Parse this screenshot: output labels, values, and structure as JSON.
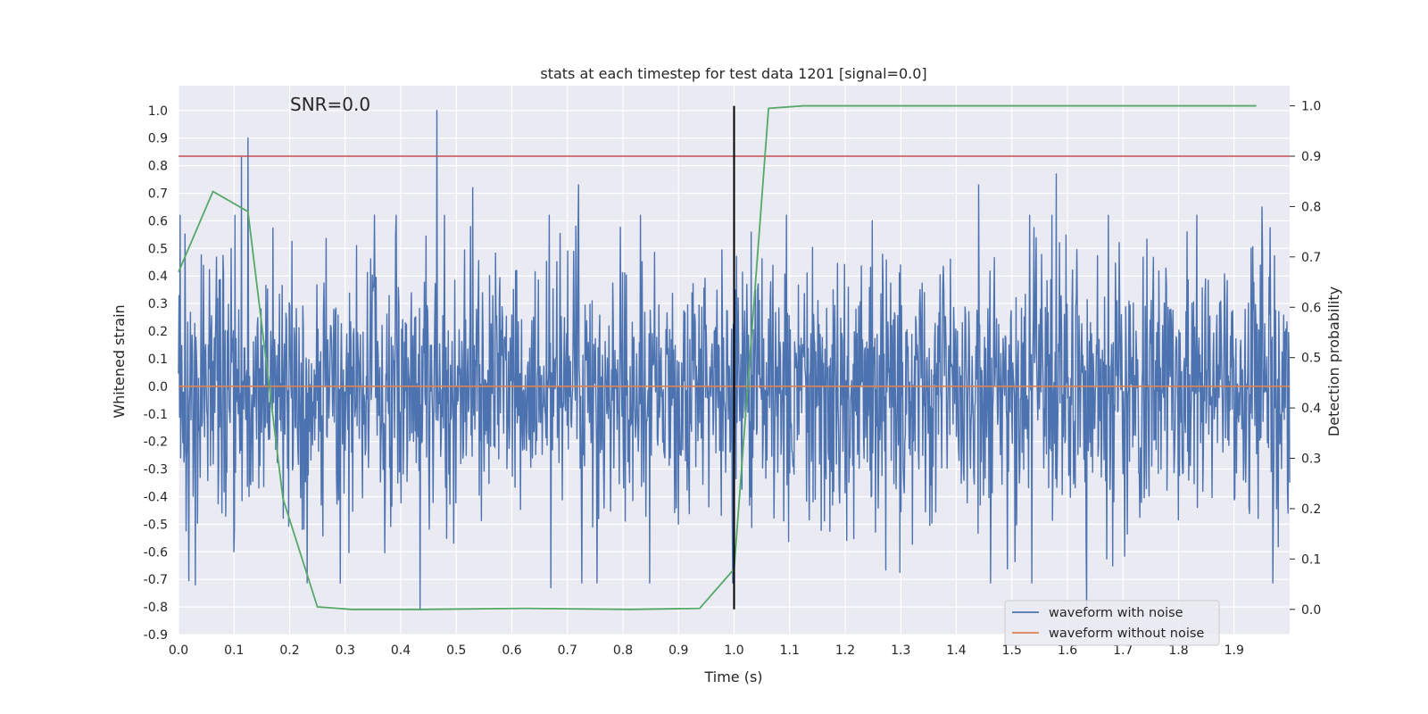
{
  "chart_data": {
    "type": "line",
    "title": "stats at each timestep for test data 1201 [signal=0.0]",
    "xlabel": "Time (s)",
    "ylabel": "Whitened strain",
    "ylabel_right": "Detection probability",
    "annotation": "SNR=0.0",
    "xlim": [
      0.0,
      2.0
    ],
    "ylim": [
      -0.9,
      1.09
    ],
    "ylim_right": [
      -0.05,
      1.04
    ],
    "x_ticks": [
      "0.0",
      "0.1",
      "0.2",
      "0.3",
      "0.4",
      "0.5",
      "0.6",
      "0.7",
      "0.8",
      "0.9",
      "1.0",
      "1.1",
      "1.2",
      "1.3",
      "1.4",
      "1.5",
      "1.6",
      "1.7",
      "1.8",
      "1.9"
    ],
    "y_ticks": [
      "1.0",
      "0.9",
      "0.8",
      "0.7",
      "0.6",
      "0.5",
      "0.4",
      "0.3",
      "0.2",
      "0.1",
      "0.0",
      "-0.1",
      "-0.2",
      "-0.3",
      "-0.4",
      "-0.5",
      "-0.6",
      "-0.7",
      "-0.8",
      "-0.9"
    ],
    "y_ticks_right": [
      "1.0",
      "0.9",
      "0.8",
      "0.7",
      "0.6",
      "0.5",
      "0.4",
      "0.3",
      "0.2",
      "0.1",
      "0.0"
    ],
    "series": [
      {
        "name": "waveform with noise",
        "axis": "left",
        "color": "#4c72b0",
        "style": "noise",
        "x_range": [
          0.0,
          2.0
        ],
        "n_samples": 2048,
        "std": 0.24,
        "amplitude_range": [
          -0.81,
          1.0
        ],
        "spikes": [
          {
            "x": 0.465,
            "y": 1.0
          },
          {
            "x": 0.125,
            "y": 0.9
          },
          {
            "x": 0.113,
            "y": 0.83
          },
          {
            "x": 0.1,
            "y": -0.6
          },
          {
            "x": 0.435,
            "y": -0.81
          },
          {
            "x": 1.635,
            "y": -0.8
          },
          {
            "x": 0.03,
            "y": -0.72
          },
          {
            "x": 1.58,
            "y": 0.77
          },
          {
            "x": 0.53,
            "y": 0.72
          },
          {
            "x": 0.72,
            "y": 0.73
          },
          {
            "x": 1.44,
            "y": 0.73
          },
          {
            "x": 1.95,
            "y": 0.65
          },
          {
            "x": 0.67,
            "y": -0.73
          }
        ]
      },
      {
        "name": "waveform without noise",
        "axis": "left",
        "color": "#dd8452",
        "x": [
          0.0,
          2.0
        ],
        "values": [
          0.0,
          0.0
        ]
      },
      {
        "name": "detection probability",
        "axis": "right",
        "color": "#55a868",
        "x": [
          0.0,
          0.062,
          0.125,
          0.188,
          0.25,
          0.312,
          0.438,
          0.625,
          0.812,
          0.938,
          1.0,
          1.062,
          1.125,
          1.25,
          1.5,
          1.75,
          1.94
        ],
        "values": [
          0.67,
          0.83,
          0.79,
          0.22,
          0.005,
          0.0,
          0.0,
          0.002,
          0.0,
          0.002,
          0.08,
          0.995,
          1.0,
          1.0,
          1.0,
          1.0,
          1.0
        ]
      }
    ],
    "threshold_line": {
      "axis": "right",
      "value": 0.9,
      "color": "#c44e52"
    },
    "vertical_marker": {
      "x": 1.0,
      "y_from": 0.0,
      "y_to": 1.0,
      "axis": "right",
      "color": "#000000"
    },
    "legend": {
      "placement": "lower-right",
      "entries": [
        {
          "label": "waveform with noise",
          "color": "#4c72b0"
        },
        {
          "label": "waveform without noise",
          "color": "#dd8452"
        }
      ]
    },
    "grid": true
  }
}
